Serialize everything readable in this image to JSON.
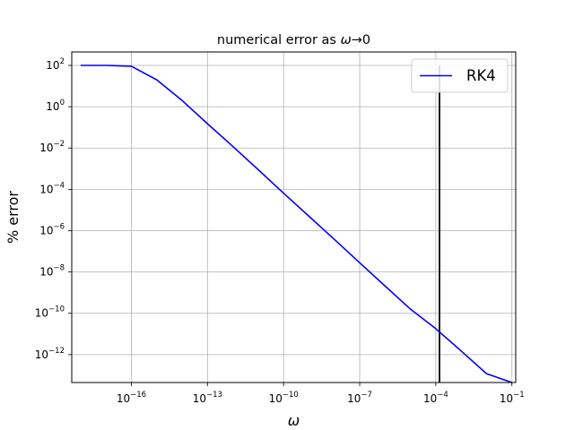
{
  "chart_data": {
    "type": "line",
    "title_prefix": "numerical error as ",
    "title_symbol": "ω",
    "title_suffix": "→0",
    "xlabel": "ω",
    "ylabel": "% error",
    "xscale": "log",
    "yscale": "log",
    "xlim_exp": [
      -18.35,
      -0.85
    ],
    "ylim_exp": [
      -13.35,
      2.65
    ],
    "xticks": [
      {
        "base": "10",
        "exp": "−16",
        "value_exp": -16
      },
      {
        "base": "10",
        "exp": "−13",
        "value_exp": -13
      },
      {
        "base": "10",
        "exp": "−10",
        "value_exp": -10
      },
      {
        "base": "10",
        "exp": "−7",
        "value_exp": -7
      },
      {
        "base": "10",
        "exp": "−4",
        "value_exp": -4
      },
      {
        "base": "10",
        "exp": "−1",
        "value_exp": -1
      }
    ],
    "yticks": [
      {
        "base": "10",
        "exp": "2",
        "value_exp": 2
      },
      {
        "base": "10",
        "exp": "0",
        "value_exp": 0
      },
      {
        "base": "10",
        "exp": "−2",
        "value_exp": -2
      },
      {
        "base": "10",
        "exp": "−4",
        "value_exp": -4
      },
      {
        "base": "10",
        "exp": "−6",
        "value_exp": -6
      },
      {
        "base": "10",
        "exp": "−8",
        "value_exp": -8
      },
      {
        "base": "10",
        "exp": "−10",
        "value_exp": -10
      },
      {
        "base": "10",
        "exp": "−12",
        "value_exp": -12
      }
    ],
    "grid": true,
    "legend_position": "top-right",
    "series": [
      {
        "name": "RK4",
        "color": "#0000ff",
        "x": [
          1e-18,
          1e-17,
          1e-16,
          1e-15,
          1e-14,
          1e-13,
          1e-12,
          1e-11,
          1e-10,
          1e-09,
          1e-08,
          1e-07,
          1e-06,
          1e-05,
          0.0001,
          0.001,
          0.01,
          0.1,
          0.1
        ],
        "y": [
          100,
          100,
          91,
          20,
          2,
          0.15,
          0.012,
          0.0009,
          6.5e-05,
          5e-06,
          3.8e-07,
          2.8e-08,
          2.1e-09,
          1.6e-10,
          1.8e-11,
          1.5e-12,
          1.2e-13,
          1e-14,
          4.5e-14
        ]
      }
    ],
    "vertical_line": {
      "x": 0.00014,
      "color": "#000000"
    }
  }
}
